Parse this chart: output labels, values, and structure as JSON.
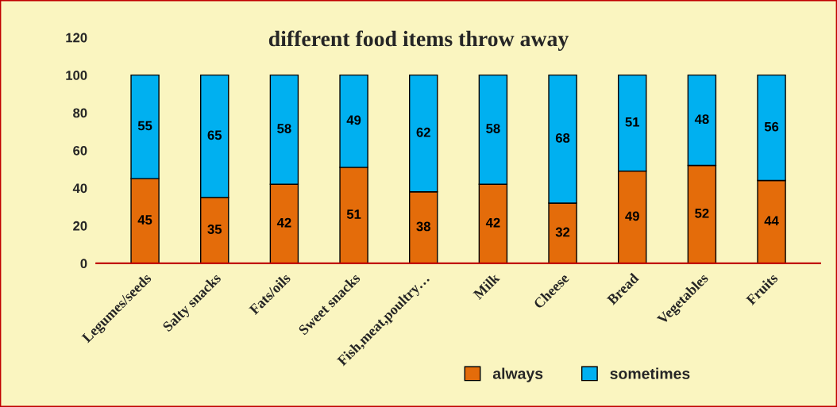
{
  "chart_data": {
    "type": "bar",
    "title": "different food items throw away",
    "categories": [
      "Legumes/seeds",
      "Salty snacks",
      "Fats/oils",
      "Sweet snacks",
      "Fish,meat,poultry…",
      "Milk",
      "Cheese",
      "Bread",
      "Vegetables",
      "Fruits"
    ],
    "series": [
      {
        "name": "always",
        "color": "#e46c0a",
        "values": [
          45,
          35,
          42,
          51,
          38,
          42,
          32,
          49,
          52,
          44
        ]
      },
      {
        "name": "sometimes",
        "color": "#00b0f0",
        "values": [
          55,
          65,
          58,
          49,
          62,
          58,
          68,
          51,
          48,
          56
        ]
      }
    ],
    "stacked": true,
    "data_labels": true,
    "ylim": [
      0,
      120
    ],
    "yticks": [
      0,
      20,
      40,
      60,
      80,
      100,
      120
    ],
    "grid": false,
    "legend": "bottom"
  }
}
